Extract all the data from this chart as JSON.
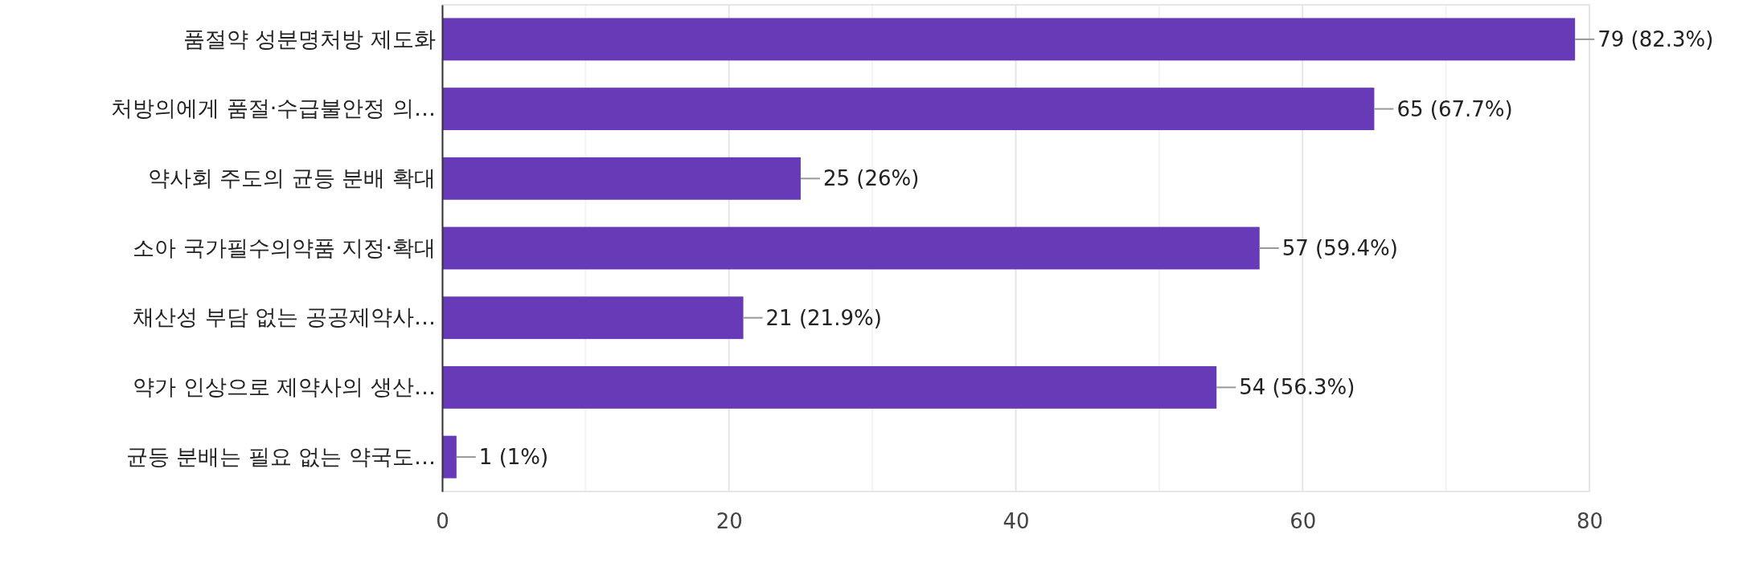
{
  "chart_data": {
    "type": "bar",
    "orientation": "horizontal",
    "categories": [
      "품절약 성분명처방 제도화",
      "처방의에게 품절·수급불안정 의…",
      "약사회 주도의 균등 분배 확대",
      "소아 국가필수의약품 지정·확대",
      "채산성 부담 없는 공공제약사…",
      "약가 인상으로 제약사의 생산…",
      "균등 분배는 필요 없는 약국도…"
    ],
    "values": [
      79,
      65,
      25,
      57,
      21,
      54,
      1
    ],
    "value_labels": [
      "79 (82.3%)",
      "65 (67.7%)",
      "25 (26%)",
      "57 (59.4%)",
      "21 (21.9%)",
      "54 (56.3%)",
      "1 (1%)"
    ],
    "color": "#673ab7",
    "xlim": [
      0,
      80
    ],
    "xticks": [
      0,
      {
        "value": 10,
        "label": null
      },
      20,
      {
        "value": 30,
        "label": null
      },
      40,
      {
        "value": 50,
        "label": null
      },
      60,
      {
        "value": 70,
        "label": null
      },
      80
    ],
    "grid": "x"
  }
}
